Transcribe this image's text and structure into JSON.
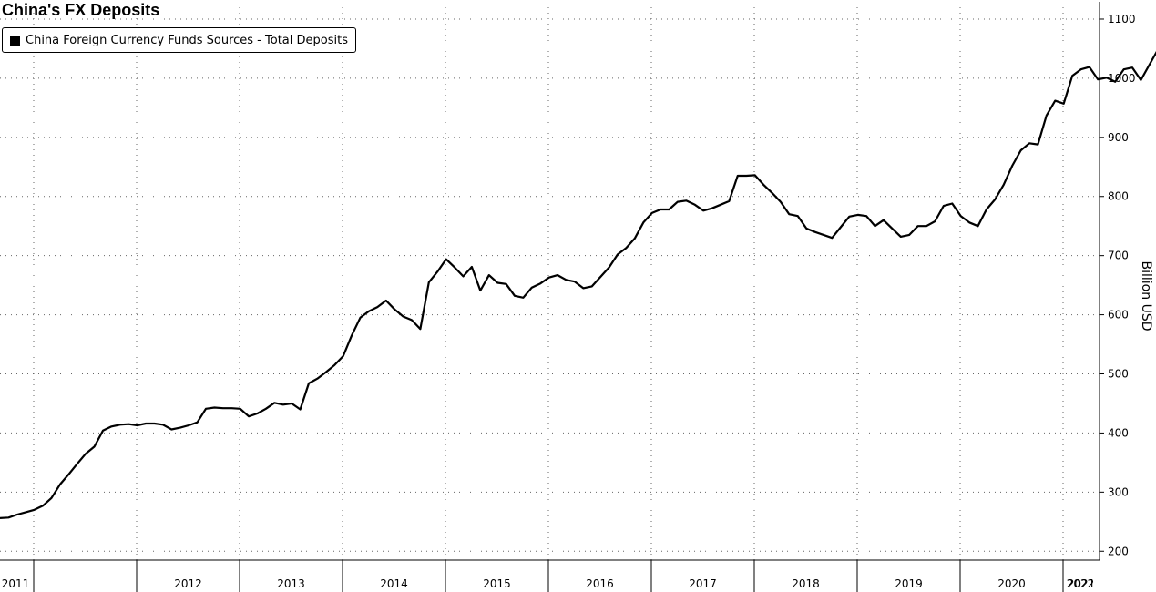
{
  "chart_data": {
    "type": "line",
    "title": "China's FX Deposits",
    "ylabel": "Billion USD",
    "xlabel": "",
    "ylim": [
      185,
      1120
    ],
    "yticks": [
      200,
      300,
      400,
      500,
      600,
      700,
      800,
      900,
      1000,
      1100
    ],
    "x_labels": [
      "2011",
      "2012",
      "2013",
      "2014",
      "2015",
      "2016",
      "2017",
      "2018",
      "2019",
      "2020",
      "2021",
      "2022"
    ],
    "grid": true,
    "legend_position": "top-left",
    "series": [
      {
        "name": "China Foreign Currency Funds Sources - Total Deposits",
        "color": "#000000",
        "points": [
          [
            "2011-01",
            256
          ],
          [
            "2011-02",
            257
          ],
          [
            "2011-03",
            262
          ],
          [
            "2011-04",
            266
          ],
          [
            "2011-05",
            270
          ],
          [
            "2011-06",
            277
          ],
          [
            "2011-07",
            290
          ],
          [
            "2011-08",
            313
          ],
          [
            "2011-09",
            330
          ],
          [
            "2011-10",
            348
          ],
          [
            "2011-11",
            365
          ],
          [
            "2011-12",
            377
          ],
          [
            "2012-01",
            404
          ],
          [
            "2012-02",
            411
          ],
          [
            "2012-03",
            414
          ],
          [
            "2012-04",
            415
          ],
          [
            "2012-05",
            413
          ],
          [
            "2012-06",
            416
          ],
          [
            "2012-07",
            416
          ],
          [
            "2012-08",
            414
          ],
          [
            "2012-09",
            406
          ],
          [
            "2012-10",
            409
          ],
          [
            "2012-11",
            413
          ],
          [
            "2012-12",
            418
          ],
          [
            "2013-01",
            441
          ],
          [
            "2013-02",
            443
          ],
          [
            "2013-03",
            442
          ],
          [
            "2013-04",
            442
          ],
          [
            "2013-05",
            441
          ],
          [
            "2013-06",
            428
          ],
          [
            "2013-07",
            433
          ],
          [
            "2013-08",
            441
          ],
          [
            "2013-09",
            451
          ],
          [
            "2013-10",
            448
          ],
          [
            "2013-11",
            450
          ],
          [
            "2013-12",
            440
          ],
          [
            "2014-01",
            484
          ],
          [
            "2014-02",
            492
          ],
          [
            "2014-03",
            503
          ],
          [
            "2014-04",
            515
          ],
          [
            "2014-05",
            530
          ],
          [
            "2014-06",
            565
          ],
          [
            "2014-07",
            595
          ],
          [
            "2014-08",
            606
          ],
          [
            "2014-09",
            613
          ],
          [
            "2014-10",
            624
          ],
          [
            "2014-11",
            609
          ],
          [
            "2014-12",
            597
          ],
          [
            "2015-01",
            591
          ],
          [
            "2015-02",
            576
          ],
          [
            "2015-03",
            655
          ],
          [
            "2015-04",
            673
          ],
          [
            "2015-05",
            694
          ],
          [
            "2015-06",
            680
          ],
          [
            "2015-07",
            665
          ],
          [
            "2015-08",
            681
          ],
          [
            "2015-09",
            641
          ],
          [
            "2015-10",
            667
          ],
          [
            "2015-11",
            654
          ],
          [
            "2015-12",
            652
          ],
          [
            "2016-01",
            632
          ],
          [
            "2016-02",
            629
          ],
          [
            "2016-03",
            646
          ],
          [
            "2016-04",
            653
          ],
          [
            "2016-05",
            663
          ],
          [
            "2016-06",
            667
          ],
          [
            "2016-07",
            659
          ],
          [
            "2016-08",
            656
          ],
          [
            "2016-09",
            645
          ],
          [
            "2016-10",
            648
          ],
          [
            "2016-11",
            664
          ],
          [
            "2016-12",
            680
          ],
          [
            "2017-01",
            702
          ],
          [
            "2017-02",
            713
          ],
          [
            "2017-03",
            729
          ],
          [
            "2017-04",
            756
          ],
          [
            "2017-05",
            772
          ],
          [
            "2017-06",
            778
          ],
          [
            "2017-07",
            778
          ],
          [
            "2017-08",
            791
          ],
          [
            "2017-09",
            793
          ],
          [
            "2017-10",
            786
          ],
          [
            "2017-11",
            776
          ],
          [
            "2017-12",
            780
          ],
          [
            "2018-01",
            786
          ],
          [
            "2018-02",
            792
          ],
          [
            "2018-03",
            835
          ],
          [
            "2018-04",
            835
          ],
          [
            "2018-05",
            836
          ],
          [
            "2018-06",
            820
          ],
          [
            "2018-07",
            806
          ],
          [
            "2018-08",
            791
          ],
          [
            "2018-09",
            770
          ],
          [
            "2018-10",
            767
          ],
          [
            "2018-11",
            746
          ],
          [
            "2018-12",
            740
          ],
          [
            "2019-01",
            735
          ],
          [
            "2019-02",
            730
          ],
          [
            "2019-03",
            748
          ],
          [
            "2019-04",
            766
          ],
          [
            "2019-05",
            769
          ],
          [
            "2019-06",
            767
          ],
          [
            "2019-07",
            750
          ],
          [
            "2019-08",
            760
          ],
          [
            "2019-09",
            746
          ],
          [
            "2019-10",
            732
          ],
          [
            "2019-11",
            735
          ],
          [
            "2019-12",
            750
          ],
          [
            "2020-01",
            750
          ],
          [
            "2020-02",
            758
          ],
          [
            "2020-03",
            784
          ],
          [
            "2020-04",
            788
          ],
          [
            "2020-05",
            767
          ],
          [
            "2020-06",
            756
          ],
          [
            "2020-07",
            750
          ],
          [
            "2020-08",
            778
          ],
          [
            "2020-09",
            795
          ],
          [
            "2020-10",
            820
          ],
          [
            "2020-11",
            852
          ],
          [
            "2020-12",
            878
          ],
          [
            "2021-01",
            890
          ],
          [
            "2021-02",
            888
          ],
          [
            "2021-03",
            937
          ],
          [
            "2021-04",
            962
          ],
          [
            "2021-05",
            957
          ],
          [
            "2021-06",
            1004
          ],
          [
            "2021-07",
            1015
          ],
          [
            "2021-08",
            1019
          ],
          [
            "2021-09",
            998
          ],
          [
            "2021-10",
            1001
          ],
          [
            "2021-11",
            994
          ],
          [
            "2021-12",
            1015
          ],
          [
            "2022-01",
            1018
          ],
          [
            "2022-02",
            997
          ],
          [
            "2022-03",
            1023
          ],
          [
            "2022-04",
            1049
          ]
        ]
      }
    ]
  }
}
